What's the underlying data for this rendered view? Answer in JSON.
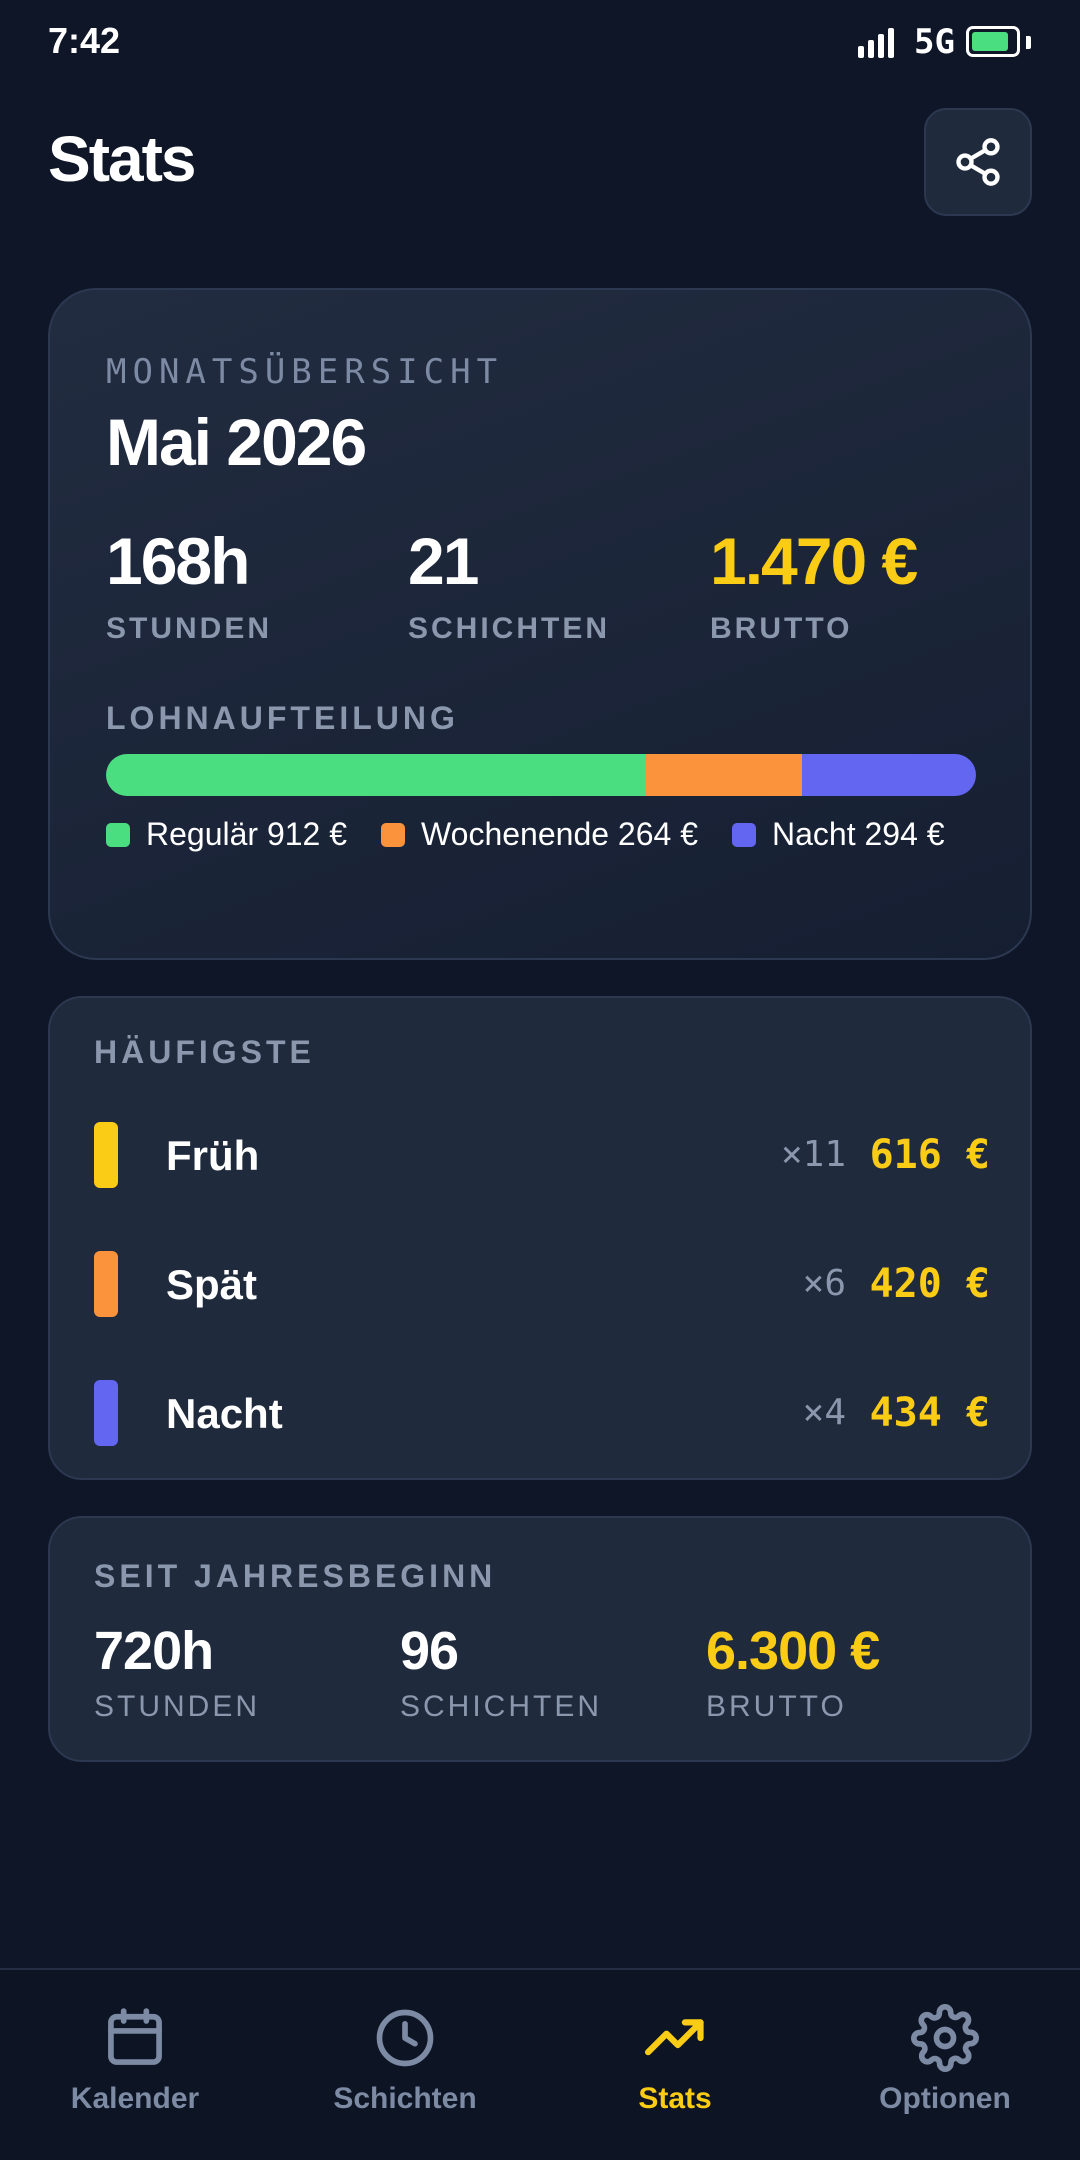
{
  "status_bar": {
    "time": "7:42",
    "network": "5G",
    "battery_level": 0.85
  },
  "header": {
    "title": "Stats",
    "share_icon": "share-icon"
  },
  "month_card": {
    "kicker": "MONATSÜBERSICHT",
    "title": "Mai 2026",
    "stats": [
      {
        "value": "168h",
        "label": "STUNDEN"
      },
      {
        "value": "21",
        "label": "SCHICHTEN"
      },
      {
        "value": "1.470 €",
        "label": "BRUTTO"
      }
    ],
    "split_label": "LOHNAUFTEILUNG",
    "split": [
      {
        "name": "Regulär",
        "amount": "912 €",
        "legend": "Regulär 912 €",
        "value": 912,
        "color": "#4ade80"
      },
      {
        "name": "Wochenende",
        "amount": "264 €",
        "legend": "Wochenende 264 €",
        "value": 264,
        "color": "#fb923c"
      },
      {
        "name": "Nacht",
        "amount": "294 €",
        "legend": "Nacht 294 €",
        "value": 294,
        "color": "#6366f1"
      }
    ]
  },
  "top_shifts": {
    "label": "HÄUFIGSTE",
    "items": [
      {
        "name": "Früh",
        "count": "×11",
        "amount": "616 €",
        "color": "#facc15"
      },
      {
        "name": "Spät",
        "count": "×6",
        "amount": "420 €",
        "color": "#fb923c"
      },
      {
        "name": "Nacht",
        "count": "×4",
        "amount": "434 €",
        "color": "#6366f1"
      }
    ]
  },
  "year_card": {
    "label": "SEIT JAHRESBEGINN",
    "stats": [
      {
        "value": "720h",
        "label": "STUNDEN"
      },
      {
        "value": "96",
        "label": "SCHICHTEN"
      },
      {
        "value": "6.300 €",
        "label": "BRUTTO"
      }
    ]
  },
  "nav": {
    "active": 2,
    "items": [
      {
        "label": "Kalender",
        "icon": "calendar-icon"
      },
      {
        "label": "Schichten",
        "icon": "clock-icon"
      },
      {
        "label": "Stats",
        "icon": "trending-up-icon"
      },
      {
        "label": "Optionen",
        "icon": "gear-icon"
      }
    ]
  },
  "colors": {
    "background": "#0f1628",
    "card": "#1f2a3d",
    "accent_gold": "#facc15",
    "muted": "#8b97ad"
  }
}
